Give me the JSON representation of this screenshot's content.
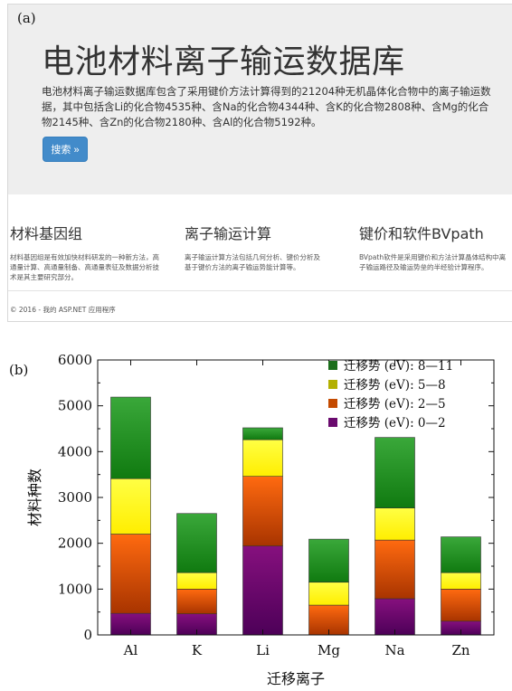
{
  "panel_a": {
    "tag": "(a)",
    "title": "电池材料离子输运数据库",
    "description": "电池材料离子输运数据库包含了采用键价方法计算得到的21204种无机晶体化合物中的离子输运数据，其中包括含Li的化合物4535种、含Na的化合物4344种、含K的化合物2808种、含Mg的化合物2145种、含Zn的化合物2180种、含Al的化合物5192种。",
    "search_button": "搜索 »",
    "features": [
      {
        "title": "材料基因组",
        "text": "材料基因组是有效加快材料研发的一种新方法，高通量计算、高通量制备、高通量表征及数据分析技术是其主要研究部分。"
      },
      {
        "title": "离子输运计算",
        "text": "离子输运计算方法包括几何分析、键价分析及基于键价方法的离子输运势能计算等。"
      },
      {
        "title": "键价和软件BVpath",
        "text": "BVpath软件是采用键价和方法计算晶体结构中离子输运路径及输运势垒的半经验计算程序。"
      }
    ],
    "footer": "© 2016 - 我的 ASP.NET 应用程序"
  },
  "panel_b": {
    "tag": "(b)"
  },
  "chart_data": {
    "type": "bar",
    "stacked": true,
    "categories": [
      "Al",
      "K",
      "Li",
      "Mg",
      "Na",
      "Zn"
    ],
    "series": [
      {
        "name": "迁移势 (eV): 0—2",
        "color": "#6a0a6e",
        "gradient": [
          "#4d0058",
          "#86107e"
        ],
        "values": [
          470,
          460,
          1940,
          0,
          790,
          300
        ]
      },
      {
        "name": "迁移势 (eV): 2—5",
        "color": "#c44a00",
        "gradient": [
          "#a83400",
          "#ff6a10"
        ],
        "values": [
          1730,
          540,
          1520,
          650,
          1280,
          700
        ]
      },
      {
        "name": "迁移势 (eV): 5—8",
        "color": "#b3b000",
        "gradient": [
          "#ffee00",
          "#ffff44"
        ],
        "values": [
          1210,
          360,
          800,
          500,
          700,
          360
        ]
      },
      {
        "name": "迁移势 (eV): 8—11",
        "color": "#1b6e1b",
        "gradient": [
          "#107a10",
          "#3aa83a"
        ],
        "values": [
          1780,
          1290,
          260,
          940,
          1540,
          780
        ]
      }
    ],
    "xlabel": "迁移离子",
    "ylabel": "材料种数",
    "ylim": [
      0,
      6000
    ],
    "yticks": [
      0,
      1000,
      2000,
      3000,
      4000,
      5000,
      6000
    ],
    "legend_position": "top-right",
    "grid": false
  }
}
